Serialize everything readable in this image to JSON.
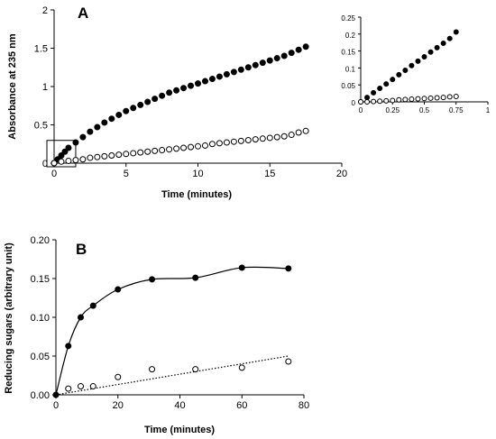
{
  "chart_data": [
    {
      "panel": "A",
      "type": "scatter",
      "xlabel": "Time (minutes)",
      "ylabel": "Absorbance at 235 nm",
      "xlim": [
        0,
        20
      ],
      "ylim": [
        0,
        2
      ],
      "xticks": [
        "0",
        "5",
        "10",
        "15",
        "20"
      ],
      "yticks": [
        "0",
        "0.5",
        "1",
        "1.5",
        "2"
      ],
      "grid": false,
      "series": [
        {
          "marker": "filled-circle",
          "color": "#000000",
          "points": [
            [
              0,
              0.0
            ],
            [
              0.25,
              0.05
            ],
            [
              0.5,
              0.1
            ],
            [
              0.75,
              0.15
            ],
            [
              1,
              0.2
            ],
            [
              1.5,
              0.27
            ],
            [
              2,
              0.34
            ],
            [
              2.5,
              0.41
            ],
            [
              3,
              0.47
            ],
            [
              3.5,
              0.53
            ],
            [
              4,
              0.58
            ],
            [
              4.5,
              0.63
            ],
            [
              5,
              0.68
            ],
            [
              5.5,
              0.72
            ],
            [
              6,
              0.76
            ],
            [
              6.5,
              0.8
            ],
            [
              7,
              0.84
            ],
            [
              7.5,
              0.88
            ],
            [
              8,
              0.92
            ],
            [
              8.5,
              0.95
            ],
            [
              9,
              0.98
            ],
            [
              9.5,
              1.01
            ],
            [
              10,
              1.04
            ],
            [
              10.5,
              1.07
            ],
            [
              11,
              1.1
            ],
            [
              11.5,
              1.13
            ],
            [
              12,
              1.16
            ],
            [
              12.5,
              1.19
            ],
            [
              13,
              1.22
            ],
            [
              13.5,
              1.25
            ],
            [
              14,
              1.28
            ],
            [
              14.5,
              1.31
            ],
            [
              15,
              1.34
            ],
            [
              15.5,
              1.37
            ],
            [
              16,
              1.4
            ],
            [
              16.5,
              1.44
            ],
            [
              17,
              1.48
            ],
            [
              17.5,
              1.52
            ]
          ]
        },
        {
          "marker": "open-circle",
          "color": "#000000",
          "points": [
            [
              0,
              0.0
            ],
            [
              0.5,
              0.02
            ],
            [
              1,
              0.03
            ],
            [
              1.5,
              0.04
            ],
            [
              2,
              0.05
            ],
            [
              2.5,
              0.07
            ],
            [
              3,
              0.08
            ],
            [
              3.5,
              0.09
            ],
            [
              4,
              0.1
            ],
            [
              4.5,
              0.11
            ],
            [
              5,
              0.12
            ],
            [
              5.5,
              0.13
            ],
            [
              6,
              0.14
            ],
            [
              6.5,
              0.15
            ],
            [
              7,
              0.16
            ],
            [
              7.5,
              0.17
            ],
            [
              8,
              0.18
            ],
            [
              8.5,
              0.19
            ],
            [
              9,
              0.2
            ],
            [
              9.5,
              0.21
            ],
            [
              10,
              0.22
            ],
            [
              10.5,
              0.23
            ],
            [
              11,
              0.25
            ],
            [
              11.5,
              0.26
            ],
            [
              12,
              0.27
            ],
            [
              12.5,
              0.28
            ],
            [
              13,
              0.29
            ],
            [
              13.5,
              0.3
            ],
            [
              14,
              0.31
            ],
            [
              14.5,
              0.32
            ],
            [
              15,
              0.33
            ],
            [
              15.5,
              0.34
            ],
            [
              16,
              0.35
            ],
            [
              16.5,
              0.37
            ],
            [
              17,
              0.4
            ],
            [
              17.5,
              0.42
            ]
          ]
        }
      ],
      "zoom_box": {
        "x": [
          0,
          1
        ],
        "y": [
          0,
          0.25
        ]
      },
      "inset": {
        "xlim": [
          0,
          1
        ],
        "ylim": [
          0,
          0.25
        ],
        "xticks": [
          "0",
          "0.25",
          "0.5",
          "0.75",
          "1"
        ],
        "yticks": [
          "0",
          "0.05",
          "0.1",
          "0.15",
          "0.2",
          "0.25"
        ],
        "series": [
          {
            "marker": "filled-circle",
            "points": [
              [
                0,
                0.0
              ],
              [
                0.05,
                0.013
              ],
              [
                0.1,
                0.027
              ],
              [
                0.15,
                0.04
              ],
              [
                0.2,
                0.053
              ],
              [
                0.25,
                0.066
              ],
              [
                0.3,
                0.08
              ],
              [
                0.35,
                0.093
              ],
              [
                0.4,
                0.107
              ],
              [
                0.45,
                0.12
              ],
              [
                0.5,
                0.133
              ],
              [
                0.55,
                0.147
              ],
              [
                0.6,
                0.16
              ],
              [
                0.65,
                0.173
              ],
              [
                0.7,
                0.187
              ],
              [
                0.75,
                0.206
              ]
            ]
          },
          {
            "marker": "open-circle",
            "points": [
              [
                0,
                0.0
              ],
              [
                0.05,
                0.0
              ],
              [
                0.1,
                0.001
              ],
              [
                0.15,
                0.002
              ],
              [
                0.2,
                0.003
              ],
              [
                0.25,
                0.004
              ],
              [
                0.3,
                0.006
              ],
              [
                0.35,
                0.007
              ],
              [
                0.4,
                0.008
              ],
              [
                0.45,
                0.009
              ],
              [
                0.5,
                0.01
              ],
              [
                0.55,
                0.011
              ],
              [
                0.6,
                0.012
              ],
              [
                0.65,
                0.013
              ],
              [
                0.7,
                0.015
              ],
              [
                0.75,
                0.016
              ]
            ]
          }
        ]
      }
    },
    {
      "panel": "B",
      "type": "scatter",
      "xlabel": "Time (minutes)",
      "ylabel": "Reducing sugars (arbitrary unit)",
      "xlim": [
        0,
        80
      ],
      "ylim": [
        0,
        0.2
      ],
      "xticks": [
        "0",
        "20",
        "40",
        "60",
        "80"
      ],
      "yticks": [
        "0.00",
        "0.05",
        "0.10",
        "0.15",
        "0.20"
      ],
      "grid": false,
      "series": [
        {
          "marker": "filled-circle",
          "line": "smooth-solid",
          "x": [
            0,
            4,
            8,
            12,
            20,
            31,
            45,
            60,
            75
          ],
          "y": [
            0.0,
            0.063,
            0.1,
            0.115,
            0.136,
            0.149,
            0.151,
            0.164,
            0.163
          ]
        },
        {
          "marker": "open-circle",
          "line": "none",
          "x": [
            4,
            8,
            12,
            20,
            31,
            45,
            60,
            75
          ],
          "y": [
            0.008,
            0.011,
            0.011,
            0.023,
            0.033,
            0.033,
            0.035,
            0.043
          ]
        },
        {
          "marker": "none",
          "line": "dotted-linear-fit",
          "x": [
            0,
            75
          ],
          "y": [
            0.0,
            0.05
          ]
        }
      ]
    }
  ]
}
